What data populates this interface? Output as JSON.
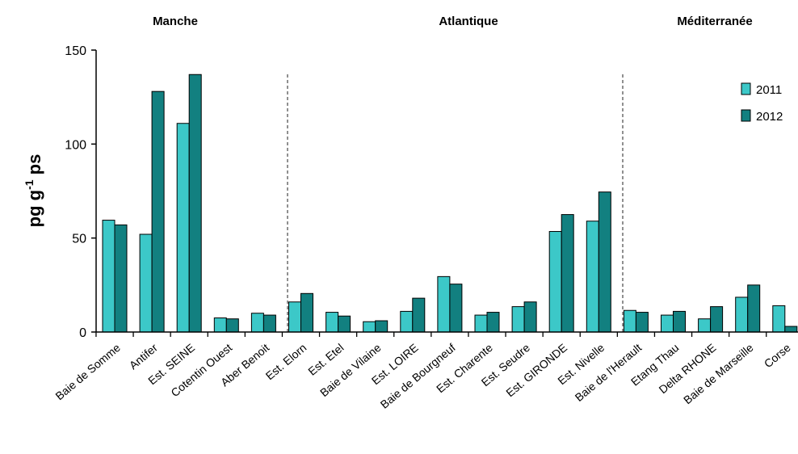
{
  "chart_data": {
    "type": "bar",
    "regions": [
      "Manche",
      "Atlantique",
      "Méditerranée"
    ],
    "ylabel": "pg g",
    "ylabel_sup": "-1",
    "ylabel_suffix": " ps",
    "ylim": [
      0,
      150
    ],
    "yticks": [
      "0",
      "50",
      "100",
      "150"
    ],
    "legend_position": "top-right",
    "categories": [
      "Baie de Somme",
      "Antifer",
      "Est. SEINE",
      "Cotentin Ouest",
      "Aber Benoit",
      "Est. Elorn",
      "Est. Etel",
      "Baie de Vilaine",
      "Est. LOIRE",
      "Baie de Bourgneuf",
      "Est. Charente",
      "Est. Seudre",
      "Est. GIRONDE",
      "Est. Nivelle",
      "Baie de l'Herault",
      "Etang Thau",
      "Delta RHONE",
      "Baie de Marseille",
      "Corse"
    ],
    "series": [
      {
        "name": "2011",
        "color": "#3cc8c8",
        "values": [
          59.5,
          52,
          111,
          7.5,
          10,
          16,
          10.5,
          5.5,
          11,
          29.5,
          9,
          13.5,
          53.5,
          59,
          11.5,
          9,
          7,
          18.5,
          14
        ]
      },
      {
        "name": "2012",
        "color": "#128080",
        "values": [
          57,
          128,
          137,
          7,
          9,
          20.5,
          8.5,
          6,
          18,
          25.5,
          10.5,
          16,
          62.5,
          74.5,
          10.5,
          11,
          13.5,
          25,
          3
        ]
      }
    ]
  }
}
